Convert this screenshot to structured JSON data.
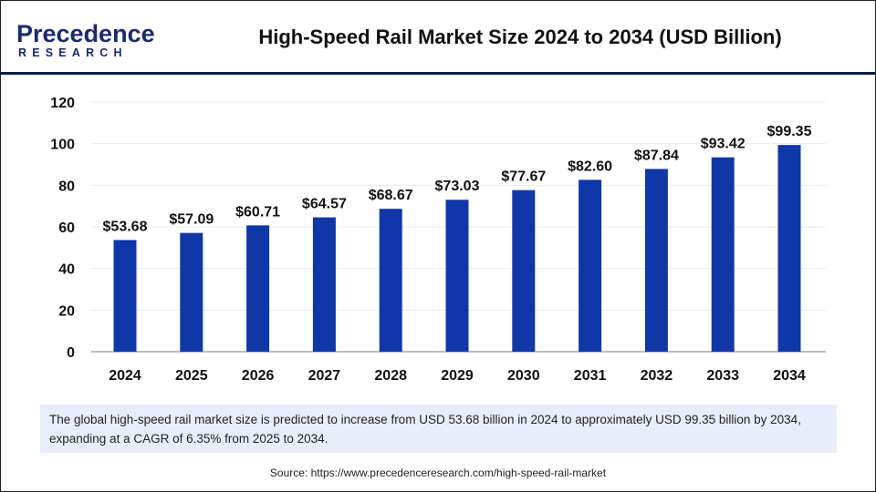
{
  "header": {
    "logo_text": "Precedence",
    "logo_sub": "RESEARCH",
    "title": "High-Speed Rail Market Size 2024 to 2034 (USD Billion)"
  },
  "chart_data": {
    "type": "bar",
    "title": "High-Speed Rail Market Size 2024 to 2034 (USD Billion)",
    "categories": [
      "2024",
      "2025",
      "2026",
      "2027",
      "2028",
      "2029",
      "2030",
      "2031",
      "2032",
      "2033",
      "2034"
    ],
    "values": [
      53.68,
      57.09,
      60.71,
      64.57,
      68.67,
      73.03,
      77.67,
      82.6,
      87.84,
      93.42,
      99.35
    ],
    "labels": [
      "$53.68",
      "$57.09",
      "$60.71",
      "$64.57",
      "$68.67",
      "$73.03",
      "$77.67",
      "$82.60",
      "$87.84",
      "$93.42",
      "$99.35"
    ],
    "yticks": [
      0,
      20,
      40,
      60,
      80,
      100,
      120
    ],
    "ylim": [
      0,
      120
    ],
    "grid": true,
    "bar_color": "#0f37a8"
  },
  "footnote": "The global high-speed rail market size is predicted to increase from USD 53.68 billion in 2024 to approximately USD 99.35 billion by 2034, expanding at a CAGR of 6.35% from 2025 to 2034.",
  "source": "Source: https://www.precedenceresearch.com/high-speed-rail-market"
}
